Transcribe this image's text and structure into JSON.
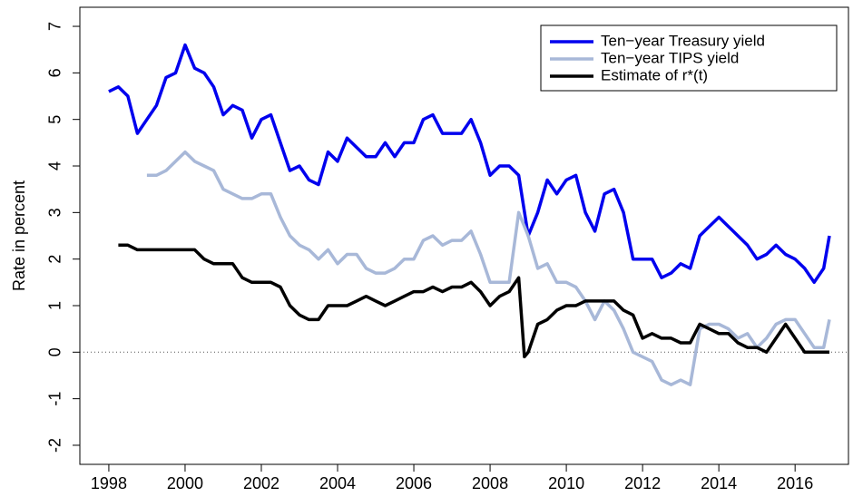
{
  "chart_data": {
    "type": "line",
    "y_label": "Rate in percent",
    "xlim": [
      1997.24,
      2017.4
    ],
    "xticks": [
      1998,
      2000,
      2002,
      2004,
      2006,
      2008,
      2010,
      2012,
      2014,
      2016
    ],
    "ylim": [
      -2.41,
      7.41
    ],
    "yticks": [
      -2,
      -1,
      0,
      1,
      2,
      3,
      4,
      5,
      6,
      7
    ],
    "hline": 0,
    "legend": "top-right",
    "series": [
      {
        "name": "Ten−year Treasury yield",
        "color": "#0000ee",
        "x": [
          1998.0,
          1998.25,
          1998.5,
          1998.75,
          1999.0,
          1999.25,
          1999.5,
          1999.75,
          2000.0,
          2000.25,
          2000.5,
          2000.75,
          2001.0,
          2001.25,
          2001.5,
          2001.75,
          2002.0,
          2002.25,
          2002.5,
          2002.75,
          2003.0,
          2003.25,
          2003.5,
          2003.75,
          2004.0,
          2004.25,
          2004.5,
          2004.75,
          2005.0,
          2005.25,
          2005.5,
          2005.75,
          2006.0,
          2006.25,
          2006.5,
          2006.75,
          2007.0,
          2007.25,
          2007.5,
          2007.75,
          2008.0,
          2008.25,
          2008.5,
          2008.75,
          2009.0,
          2009.25,
          2009.5,
          2009.75,
          2010.0,
          2010.25,
          2010.5,
          2010.75,
          2011.0,
          2011.25,
          2011.5,
          2011.75,
          2012.0,
          2012.25,
          2012.5,
          2012.75,
          2013.0,
          2013.25,
          2013.5,
          2013.75,
          2014.0,
          2014.25,
          2014.5,
          2014.75,
          2015.0,
          2015.25,
          2015.5,
          2015.75,
          2016.0,
          2016.25,
          2016.5,
          2016.75,
          2016.9
        ],
        "values": [
          5.6,
          5.7,
          5.5,
          4.7,
          5.0,
          5.3,
          5.9,
          6.0,
          6.6,
          6.1,
          6.0,
          5.7,
          5.1,
          5.3,
          5.2,
          4.6,
          5.0,
          5.1,
          4.5,
          3.9,
          4.0,
          3.7,
          3.6,
          4.3,
          4.1,
          4.6,
          4.4,
          4.2,
          4.2,
          4.5,
          4.2,
          4.5,
          4.5,
          5.0,
          5.1,
          4.7,
          4.7,
          4.7,
          5.0,
          4.5,
          3.8,
          4.0,
          4.0,
          3.8,
          2.5,
          3.0,
          3.7,
          3.4,
          3.7,
          3.8,
          3.0,
          2.6,
          3.4,
          3.5,
          3.0,
          2.0,
          2.0,
          2.0,
          1.6,
          1.7,
          1.9,
          1.8,
          2.5,
          2.7,
          2.9,
          2.7,
          2.5,
          2.3,
          2.0,
          2.1,
          2.3,
          2.1,
          2.0,
          1.8,
          1.5,
          1.8,
          2.5
        ]
      },
      {
        "name": "Ten−year TIPS yield",
        "color": "#a8b8d8",
        "x": [
          1999.0,
          1999.25,
          1999.5,
          1999.75,
          2000.0,
          2000.25,
          2000.5,
          2000.75,
          2001.0,
          2001.25,
          2001.5,
          2001.75,
          2002.0,
          2002.25,
          2002.5,
          2002.75,
          2003.0,
          2003.25,
          2003.5,
          2003.75,
          2004.0,
          2004.25,
          2004.5,
          2004.75,
          2005.0,
          2005.25,
          2005.5,
          2005.75,
          2006.0,
          2006.25,
          2006.5,
          2006.75,
          2007.0,
          2007.25,
          2007.5,
          2007.75,
          2008.0,
          2008.25,
          2008.5,
          2008.75,
          2009.0,
          2009.25,
          2009.5,
          2009.75,
          2010.0,
          2010.25,
          2010.5,
          2010.75,
          2011.0,
          2011.25,
          2011.5,
          2011.75,
          2012.0,
          2012.25,
          2012.5,
          2012.75,
          2013.0,
          2013.25,
          2013.5,
          2013.75,
          2014.0,
          2014.25,
          2014.5,
          2014.75,
          2015.0,
          2015.25,
          2015.5,
          2015.75,
          2016.0,
          2016.25,
          2016.5,
          2016.75,
          2016.9
        ],
        "values": [
          3.8,
          3.8,
          3.9,
          4.1,
          4.3,
          4.1,
          4.0,
          3.9,
          3.5,
          3.4,
          3.3,
          3.3,
          3.4,
          3.4,
          2.9,
          2.5,
          2.3,
          2.2,
          2.0,
          2.2,
          1.9,
          2.1,
          2.1,
          1.8,
          1.7,
          1.7,
          1.8,
          2.0,
          2.0,
          2.4,
          2.5,
          2.3,
          2.4,
          2.4,
          2.6,
          2.1,
          1.5,
          1.5,
          1.5,
          3.0,
          2.5,
          1.8,
          1.9,
          1.5,
          1.5,
          1.4,
          1.1,
          0.7,
          1.1,
          0.9,
          0.5,
          0.0,
          -0.1,
          -0.2,
          -0.6,
          -0.7,
          -0.6,
          -0.7,
          0.5,
          0.6,
          0.6,
          0.5,
          0.3,
          0.4,
          0.1,
          0.3,
          0.6,
          0.7,
          0.7,
          0.4,
          0.1,
          0.1,
          0.7
        ]
      },
      {
        "name": "Estimate of r*(t)",
        "color": "#000000",
        "x": [
          1998.25,
          1998.5,
          1998.75,
          1999.0,
          1999.25,
          1999.5,
          1999.75,
          2000.0,
          2000.25,
          2000.5,
          2000.75,
          2001.0,
          2001.25,
          2001.5,
          2001.75,
          2002.0,
          2002.25,
          2002.5,
          2002.75,
          2003.0,
          2003.25,
          2003.5,
          2003.75,
          2004.0,
          2004.25,
          2004.5,
          2004.75,
          2005.0,
          2005.25,
          2005.5,
          2005.75,
          2006.0,
          2006.25,
          2006.5,
          2006.75,
          2007.0,
          2007.25,
          2007.5,
          2007.75,
          2008.0,
          2008.25,
          2008.5,
          2008.75,
          2008.9,
          2009.0,
          2009.25,
          2009.5,
          2009.75,
          2010.0,
          2010.25,
          2010.5,
          2010.75,
          2011.0,
          2011.25,
          2011.5,
          2011.75,
          2012.0,
          2012.25,
          2012.5,
          2012.75,
          2013.0,
          2013.25,
          2013.5,
          2013.75,
          2014.0,
          2014.25,
          2014.5,
          2014.75,
          2015.0,
          2015.25,
          2015.5,
          2015.75,
          2016.0,
          2016.25,
          2016.5,
          2016.75,
          2016.9
        ],
        "values": [
          2.3,
          2.3,
          2.2,
          2.2,
          2.2,
          2.2,
          2.2,
          2.2,
          2.2,
          2.0,
          1.9,
          1.9,
          1.9,
          1.6,
          1.5,
          1.5,
          1.5,
          1.4,
          1.0,
          0.8,
          0.7,
          0.7,
          1.0,
          1.0,
          1.0,
          1.1,
          1.2,
          1.1,
          1.0,
          1.1,
          1.2,
          1.3,
          1.3,
          1.4,
          1.3,
          1.4,
          1.4,
          1.5,
          1.3,
          1.0,
          1.2,
          1.3,
          1.6,
          -0.1,
          0.0,
          0.6,
          0.7,
          0.9,
          1.0,
          1.0,
          1.1,
          1.1,
          1.1,
          1.1,
          0.9,
          0.8,
          0.3,
          0.4,
          0.3,
          0.3,
          0.2,
          0.2,
          0.6,
          0.5,
          0.4,
          0.4,
          0.2,
          0.1,
          0.1,
          0.0,
          0.3,
          0.6,
          0.3,
          0.0,
          0.0,
          0.0,
          0.0
        ]
      }
    ]
  }
}
